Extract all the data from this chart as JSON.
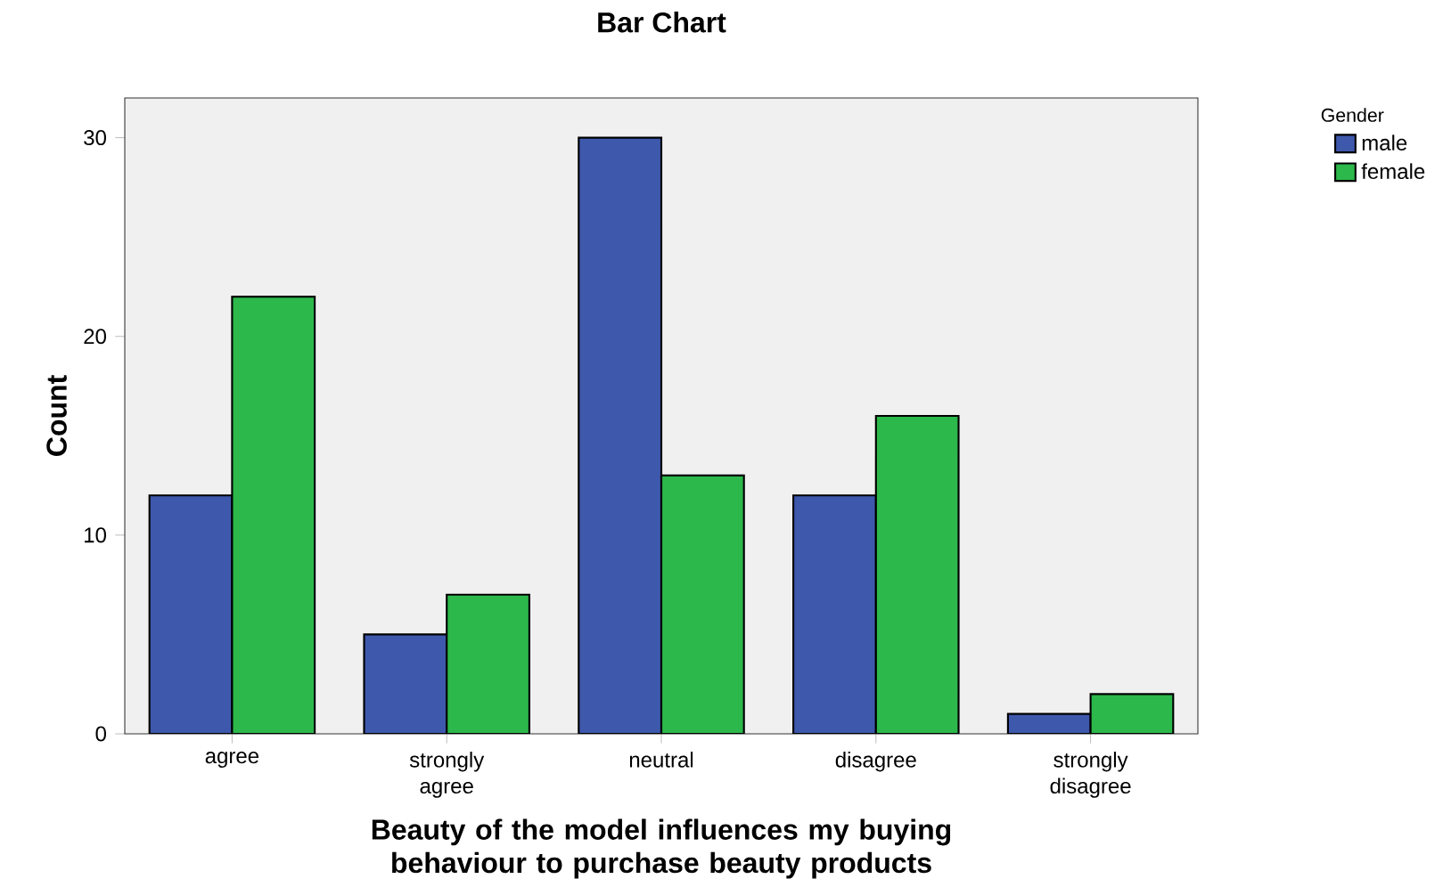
{
  "chart_data": {
    "type": "bar",
    "title": "Bar Chart",
    "xlabel": "Beauty of the model influences my buying behaviour to purchase beauty products",
    "ylabel": "Count",
    "legend_title": "Gender",
    "categories": [
      "agree",
      "strongly agree",
      "neutral",
      "disagree",
      "strongly disagree"
    ],
    "series": [
      {
        "name": "male",
        "color": "#3e58ac",
        "values": [
          12,
          5,
          30,
          12,
          1
        ]
      },
      {
        "name": "female",
        "color": "#2db84b",
        "values": [
          22,
          7,
          13,
          16,
          2
        ]
      }
    ],
    "ylim": [
      0,
      32
    ],
    "yticks": [
      0,
      10,
      20,
      30
    ],
    "grid": false,
    "legend": "top right"
  }
}
